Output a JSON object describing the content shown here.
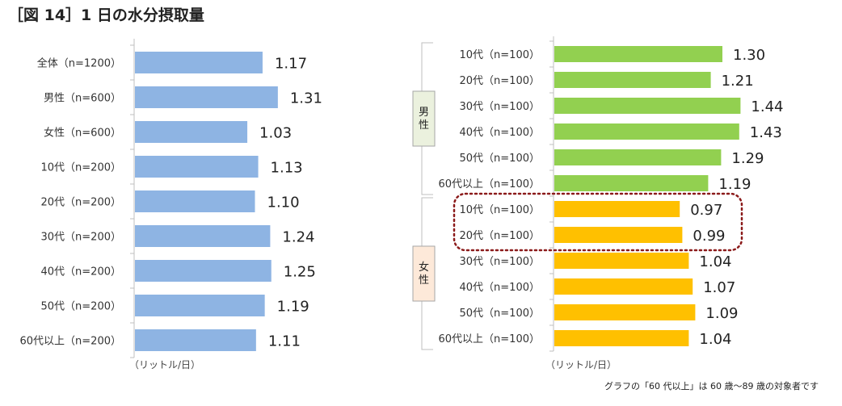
{
  "title": "［図 14］1 日の水分摂取量",
  "footnote": "グラフの「60 代以上」は 60 歳～89 歳の対象者です",
  "colors": {
    "left_bar": "#8eb4e3",
    "male_bar": "#92d050",
    "female_bar": "#ffc000",
    "highlight": "#8b1a1a",
    "axis": "#bfbfbf",
    "male_box": "#ebf1de",
    "female_box": "#fde9d9"
  },
  "chart_data": [
    {
      "type": "bar",
      "orientation": "horizontal",
      "title": "",
      "xlabel": "（リットル/日）",
      "categories": [
        "全体（n=1200）",
        "男性（n=600）",
        "女性（n=600）",
        "10代（n=200）",
        "20代（n=200）",
        "30代（n=200）",
        "40代（n=200）",
        "50代（n=200）",
        "60代以上（n=200）"
      ],
      "values": [
        1.17,
        1.31,
        1.03,
        1.13,
        1.1,
        1.24,
        1.25,
        1.19,
        1.11
      ],
      "labels": [
        "1.17",
        "1.31",
        "1.03",
        "1.13",
        "1.10",
        "1.24",
        "1.25",
        "1.19",
        "1.11"
      ],
      "xlim": [
        0,
        1.6
      ],
      "grid": false
    },
    {
      "type": "bar",
      "orientation": "horizontal",
      "title": "",
      "xlabel": "（リットル/日）",
      "groups": [
        {
          "name": "男性",
          "categories": [
            "10代（n=100）",
            "20代（n=100）",
            "30代（n=100）",
            "40代（n=100）",
            "50代（n=100）",
            "60代以上（n=100）"
          ],
          "values": [
            1.3,
            1.21,
            1.44,
            1.43,
            1.29,
            1.19
          ],
          "labels": [
            "1.30",
            "1.21",
            "1.44",
            "1.43",
            "1.29",
            "1.19"
          ]
        },
        {
          "name": "女性",
          "categories": [
            "10代（n=100）",
            "20代（n=100）",
            "30代（n=100）",
            "40代（n=100）",
            "50代（n=100）",
            "60代以上（n=100）"
          ],
          "values": [
            0.97,
            0.99,
            1.04,
            1.07,
            1.09,
            1.04
          ],
          "labels": [
            "0.97",
            "0.99",
            "1.04",
            "1.07",
            "1.09",
            "1.04"
          ]
        }
      ],
      "highlighted": [
        "女性 10代（n=100）",
        "女性 20代（n=100）"
      ],
      "xlim": [
        0,
        1.6
      ],
      "grid": false
    }
  ]
}
